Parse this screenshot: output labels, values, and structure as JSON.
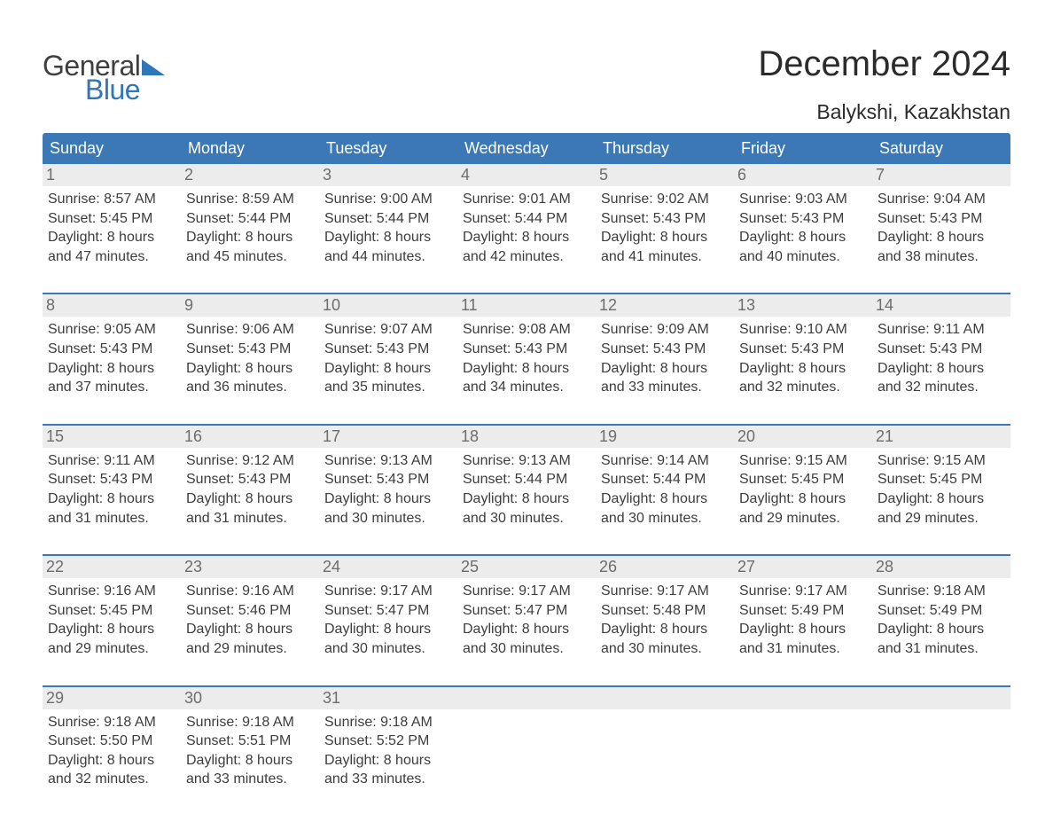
{
  "logo": {
    "word1": "General",
    "word2": "Blue"
  },
  "colors": {
    "header_bg": "#3b78b5",
    "header_text": "#ffffff",
    "daynum_bg": "#ececec",
    "daynum_text": "#6d6d6d",
    "body_text": "#3d3d3d",
    "rule": "#3b78b5",
    "logo_word1": "#3f3f3f",
    "logo_word2": "#2f77b8",
    "title": "#2b2b2b"
  },
  "title": "December 2024",
  "location": "Balykshi, Kazakhstan",
  "dow": [
    "Sunday",
    "Monday",
    "Tuesday",
    "Wednesday",
    "Thursday",
    "Friday",
    "Saturday"
  ],
  "weeks": [
    [
      {
        "d": "1",
        "r": "8:57 AM",
        "s": "5:45 PM",
        "h": "8",
        "m": "47"
      },
      {
        "d": "2",
        "r": "8:59 AM",
        "s": "5:44 PM",
        "h": "8",
        "m": "45"
      },
      {
        "d": "3",
        "r": "9:00 AM",
        "s": "5:44 PM",
        "h": "8",
        "m": "44"
      },
      {
        "d": "4",
        "r": "9:01 AM",
        "s": "5:44 PM",
        "h": "8",
        "m": "42"
      },
      {
        "d": "5",
        "r": "9:02 AM",
        "s": "5:43 PM",
        "h": "8",
        "m": "41"
      },
      {
        "d": "6",
        "r": "9:03 AM",
        "s": "5:43 PM",
        "h": "8",
        "m": "40"
      },
      {
        "d": "7",
        "r": "9:04 AM",
        "s": "5:43 PM",
        "h": "8",
        "m": "38"
      }
    ],
    [
      {
        "d": "8",
        "r": "9:05 AM",
        "s": "5:43 PM",
        "h": "8",
        "m": "37"
      },
      {
        "d": "9",
        "r": "9:06 AM",
        "s": "5:43 PM",
        "h": "8",
        "m": "36"
      },
      {
        "d": "10",
        "r": "9:07 AM",
        "s": "5:43 PM",
        "h": "8",
        "m": "35"
      },
      {
        "d": "11",
        "r": "9:08 AM",
        "s": "5:43 PM",
        "h": "8",
        "m": "34"
      },
      {
        "d": "12",
        "r": "9:09 AM",
        "s": "5:43 PM",
        "h": "8",
        "m": "33"
      },
      {
        "d": "13",
        "r": "9:10 AM",
        "s": "5:43 PM",
        "h": "8",
        "m": "32"
      },
      {
        "d": "14",
        "r": "9:11 AM",
        "s": "5:43 PM",
        "h": "8",
        "m": "32"
      }
    ],
    [
      {
        "d": "15",
        "r": "9:11 AM",
        "s": "5:43 PM",
        "h": "8",
        "m": "31"
      },
      {
        "d": "16",
        "r": "9:12 AM",
        "s": "5:43 PM",
        "h": "8",
        "m": "31"
      },
      {
        "d": "17",
        "r": "9:13 AM",
        "s": "5:43 PM",
        "h": "8",
        "m": "30"
      },
      {
        "d": "18",
        "r": "9:13 AM",
        "s": "5:44 PM",
        "h": "8",
        "m": "30"
      },
      {
        "d": "19",
        "r": "9:14 AM",
        "s": "5:44 PM",
        "h": "8",
        "m": "30"
      },
      {
        "d": "20",
        "r": "9:15 AM",
        "s": "5:45 PM",
        "h": "8",
        "m": "29"
      },
      {
        "d": "21",
        "r": "9:15 AM",
        "s": "5:45 PM",
        "h": "8",
        "m": "29"
      }
    ],
    [
      {
        "d": "22",
        "r": "9:16 AM",
        "s": "5:45 PM",
        "h": "8",
        "m": "29"
      },
      {
        "d": "23",
        "r": "9:16 AM",
        "s": "5:46 PM",
        "h": "8",
        "m": "29"
      },
      {
        "d": "24",
        "r": "9:17 AM",
        "s": "5:47 PM",
        "h": "8",
        "m": "30"
      },
      {
        "d": "25",
        "r": "9:17 AM",
        "s": "5:47 PM",
        "h": "8",
        "m": "30"
      },
      {
        "d": "26",
        "r": "9:17 AM",
        "s": "5:48 PM",
        "h": "8",
        "m": "30"
      },
      {
        "d": "27",
        "r": "9:17 AM",
        "s": "5:49 PM",
        "h": "8",
        "m": "31"
      },
      {
        "d": "28",
        "r": "9:18 AM",
        "s": "5:49 PM",
        "h": "8",
        "m": "31"
      }
    ],
    [
      {
        "d": "29",
        "r": "9:18 AM",
        "s": "5:50 PM",
        "h": "8",
        "m": "32"
      },
      {
        "d": "30",
        "r": "9:18 AM",
        "s": "5:51 PM",
        "h": "8",
        "m": "33"
      },
      {
        "d": "31",
        "r": "9:18 AM",
        "s": "5:52 PM",
        "h": "8",
        "m": "33"
      },
      null,
      null,
      null,
      null
    ]
  ],
  "labels": {
    "sunrise": "Sunrise:",
    "sunset": "Sunset:",
    "daylight": "Daylight:",
    "hours": "hours",
    "and": "and",
    "minutes": "minutes."
  },
  "typography": {
    "title_fontsize": 40,
    "location_fontsize": 23,
    "dow_fontsize": 18,
    "daynum_fontsize": 18,
    "cell_fontsize": 16
  }
}
